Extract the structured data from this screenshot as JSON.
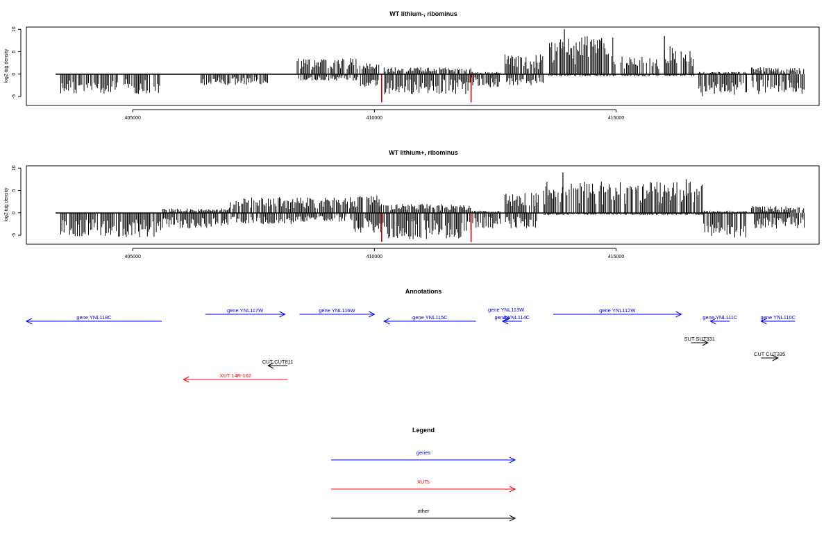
{
  "figure": {
    "panels": [
      {
        "title": "WT lithium-, ribominus",
        "ylabel": "log2 tag density",
        "yticks": [
          -5,
          0,
          5,
          10
        ],
        "xticks": [
          405000,
          410000,
          415000
        ],
        "xlim": [
          402800,
          419200
        ],
        "ylim": [
          -7,
          10.5
        ]
      },
      {
        "title": "WT lithium+, ribominus",
        "ylabel": "log2 tag density",
        "yticks": [
          -5,
          0,
          5,
          10
        ],
        "xticks": [
          405000,
          410000,
          415000
        ],
        "xlim": [
          402800,
          419200
        ],
        "ylim": [
          -7,
          10.5
        ]
      }
    ],
    "annotations_title": "Annotations",
    "legend_title": "Legend",
    "colors": {
      "genes": "#0000ff",
      "XUTs": "#ff0000",
      "other": "#000000",
      "highlight": "#cc0000"
    }
  },
  "chart_data": [
    {
      "type": "bar",
      "title": "WT lithium-, ribominus",
      "ylabel": "log2 tag density",
      "xlim": [
        402800,
        419200
      ],
      "ylim": [
        -7,
        10.5
      ],
      "segments": [
        {
          "x": [
            403500,
            405550
          ],
          "min": -4.5,
          "max": 0
        },
        {
          "x": [
            406400,
            407800
          ],
          "min": -2.5,
          "max": 0
        },
        {
          "x": [
            408400,
            409000
          ],
          "min": -1.5,
          "max": 3.5
        },
        {
          "x": [
            409000,
            409650
          ],
          "min": -1.5,
          "max": 3.8
        },
        {
          "x": [
            409700,
            410100
          ],
          "min": -3.5,
          "max": 2.5
        },
        {
          "x": [
            410200,
            412000
          ],
          "min": -4.5,
          "max": 1.5
        },
        {
          "x": [
            412000,
            412600
          ],
          "min": -3.0,
          "max": 0.5
        },
        {
          "x": [
            412700,
            413500
          ],
          "min": -2.5,
          "max": 4.5
        },
        {
          "x": [
            413600,
            415000
          ],
          "min": -0.5,
          "max": 8.5
        },
        {
          "x": [
            415100,
            415900
          ],
          "min": -0.5,
          "max": 4.0
        },
        {
          "x": [
            416000,
            416600
          ],
          "min": -0.5,
          "max": 6.5
        },
        {
          "x": [
            416700,
            417700
          ],
          "min": -5.0,
          "max": 0.5
        },
        {
          "x": [
            417800,
            418900
          ],
          "min": -4.5,
          "max": 1.5
        }
      ],
      "peaks": [
        {
          "x": 413930,
          "y": 10.0
        },
        {
          "x": 416000,
          "y": 8.5
        },
        {
          "x": 414700,
          "y": 8.0
        }
      ],
      "highlights": [
        {
          "x": 410150,
          "y": -6.3
        },
        {
          "x": 412000,
          "y": -6.3
        }
      ]
    },
    {
      "type": "bar",
      "title": "WT lithium+, ribominus",
      "ylabel": "log2 tag density",
      "xlim": [
        402800,
        419200
      ],
      "ylim": [
        -7,
        10.5
      ],
      "segments": [
        {
          "x": [
            403500,
            405600
          ],
          "min": -5.5,
          "max": 0
        },
        {
          "x": [
            405600,
            407000
          ],
          "min": -3.5,
          "max": 1.0
        },
        {
          "x": [
            407000,
            408500
          ],
          "min": -2.5,
          "max": 3.5
        },
        {
          "x": [
            408500,
            409500
          ],
          "min": -2.0,
          "max": 3.5
        },
        {
          "x": [
            409500,
            410100
          ],
          "min": -4.5,
          "max": 4.0
        },
        {
          "x": [
            410100,
            412000
          ],
          "min": -6.0,
          "max": 2.0
        },
        {
          "x": [
            412000,
            412600
          ],
          "min": -3.5,
          "max": 0.5
        },
        {
          "x": [
            412700,
            413400
          ],
          "min": -3.5,
          "max": 4.5
        },
        {
          "x": [
            413500,
            416800
          ],
          "min": -0.5,
          "max": 7.0
        },
        {
          "x": [
            416800,
            417700
          ],
          "min": -5.5,
          "max": 0.5
        },
        {
          "x": [
            417800,
            418900
          ],
          "min": -3.5,
          "max": 1.5
        }
      ],
      "peaks": [
        {
          "x": 413900,
          "y": 9.0
        },
        {
          "x": 416450,
          "y": 7.5
        }
      ],
      "highlights": [
        {
          "x": 410150,
          "y": -6.5
        },
        {
          "x": 412000,
          "y": -6.5
        }
      ]
    }
  ],
  "annotations": [
    {
      "label": "gene YNL118C",
      "start": 402800,
      "end": 405600,
      "strand": "-",
      "kind": "gene",
      "row": 2
    },
    {
      "label": "gene YNL117W",
      "start": 406500,
      "end": 408150,
      "strand": "+",
      "kind": "gene",
      "row": 1
    },
    {
      "label": "gene YNL116W",
      "start": 408450,
      "end": 410000,
      "strand": "+",
      "kind": "gene",
      "row": 1
    },
    {
      "label": "gene YNL115C",
      "start": 410200,
      "end": 412100,
      "strand": "-",
      "kind": "gene",
      "row": 2
    },
    {
      "label": "gene YNL113W",
      "start": 412650,
      "end": 412800,
      "strand": "+",
      "kind": "gene",
      "row": 0
    },
    {
      "label": "gene YNL114C",
      "start": 412650,
      "end": 413050,
      "strand": "-",
      "kind": "gene",
      "row": 2
    },
    {
      "label": "gene YNL112W",
      "start": 413700,
      "end": 416350,
      "strand": "+",
      "kind": "gene",
      "row": 1
    },
    {
      "label": "gene YNL111C",
      "start": 416950,
      "end": 417350,
      "strand": "-",
      "kind": "gene",
      "row": 2
    },
    {
      "label": "gene YNL110C",
      "start": 418000,
      "end": 418700,
      "strand": "-",
      "kind": "gene",
      "row": 2
    },
    {
      "label": "SUT SUT331",
      "start": 416550,
      "end": 416900,
      "strand": "+",
      "kind": "other",
      "row": 3
    },
    {
      "label": "CUT CUT335",
      "start": 418000,
      "end": 418350,
      "strand": "+",
      "kind": "other",
      "row": 4
    },
    {
      "label": "CUT CUT811",
      "start": 407800,
      "end": 408200,
      "strand": "-",
      "kind": "other",
      "row": 5
    },
    {
      "label": "XUT 14R-162",
      "start": 406050,
      "end": 408200,
      "strand": "-",
      "kind": "XUT",
      "row": 6
    }
  ],
  "legend": [
    {
      "label": "genes",
      "kind": "gene"
    },
    {
      "label": "XUTs",
      "kind": "XUT"
    },
    {
      "label": "other",
      "kind": "other"
    }
  ]
}
